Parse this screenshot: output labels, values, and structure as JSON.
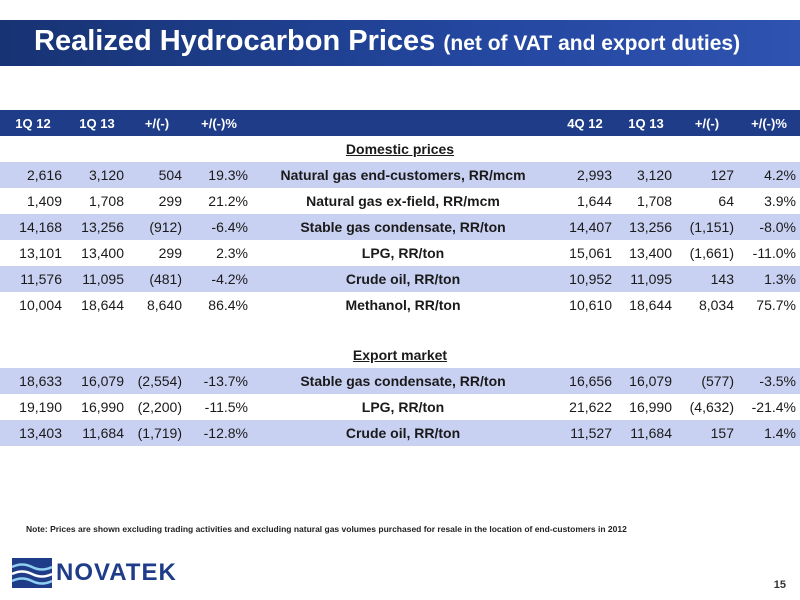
{
  "title": {
    "main": "Realized Hydrocarbon Prices",
    "sub": "(net of VAT and export duties)"
  },
  "table": {
    "headers": [
      "1Q 12",
      "1Q 13",
      "+/(-)",
      "+/(-)%",
      "",
      "4Q 12",
      "1Q 13",
      "+/(-)",
      "+/(-)%"
    ],
    "sections": [
      {
        "title": "Domestic prices",
        "rows": [
          {
            "left": [
              "2,616",
              "3,120",
              "504",
              "19.3%"
            ],
            "label": "Natural gas end-customers, RR/mcm",
            "right": [
              "2,993",
              "3,120",
              "127",
              "4.2%"
            ]
          },
          {
            "left": [
              "1,409",
              "1,708",
              "299",
              "21.2%"
            ],
            "label": "Natural gas ex-field, RR/mcm",
            "right": [
              "1,644",
              "1,708",
              "64",
              "3.9%"
            ]
          },
          {
            "left": [
              "14,168",
              "13,256",
              "(912)",
              "-6.4%"
            ],
            "label": "Stable gas condensate, RR/ton",
            "right": [
              "14,407",
              "13,256",
              "(1,151)",
              "-8.0%"
            ]
          },
          {
            "left": [
              "13,101",
              "13,400",
              "299",
              "2.3%"
            ],
            "label": "LPG, RR/ton",
            "right": [
              "15,061",
              "13,400",
              "(1,661)",
              "-11.0%"
            ]
          },
          {
            "left": [
              "11,576",
              "11,095",
              "(481)",
              "-4.2%"
            ],
            "label": "Crude oil, RR/ton",
            "right": [
              "10,952",
              "11,095",
              "143",
              "1.3%"
            ]
          },
          {
            "left": [
              "10,004",
              "18,644",
              "8,640",
              "86.4%"
            ],
            "label": "Methanol, RR/ton",
            "right": [
              "10,610",
              "18,644",
              "8,034",
              "75.7%"
            ]
          }
        ]
      },
      {
        "title": "Export market",
        "rows": [
          {
            "left": [
              "18,633",
              "16,079",
              "(2,554)",
              "-13.7%"
            ],
            "label": "Stable gas condensate, RR/ton",
            "right": [
              "16,656",
              "16,079",
              "(577)",
              "-3.5%"
            ]
          },
          {
            "left": [
              "19,190",
              "16,990",
              "(2,200)",
              "-11.5%"
            ],
            "label": "LPG, RR/ton",
            "right": [
              "21,622",
              "16,990",
              "(4,632)",
              "-21.4%"
            ]
          },
          {
            "left": [
              "13,403",
              "11,684",
              "(1,719)",
              "-12.8%"
            ],
            "label": "Crude oil, RR/ton",
            "right": [
              "11,527",
              "11,684",
              "157",
              "1.4%"
            ]
          }
        ]
      }
    ]
  },
  "note": "Note: Prices are shown excluding trading activities and excluding natural gas volumes purchased for resale in the location of end-customers in 2012",
  "logo": {
    "text": "NOVATEK",
    "icon": "novatek-logo-icon"
  },
  "page_number": "15",
  "colors": {
    "accent": "#1f3c88",
    "row_shade": "#c9d1f2"
  }
}
